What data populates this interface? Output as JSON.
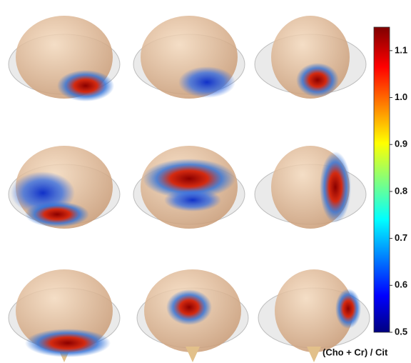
{
  "colorbar": {
    "label": "(Cho + Cr) / Cit",
    "lim": [
      0.5,
      1.15
    ],
    "ticks": [
      0.5,
      0.6,
      0.7,
      0.8,
      0.9,
      {
        "value": 1,
        "label": "1.0"
      },
      1.1
    ]
  }
}
